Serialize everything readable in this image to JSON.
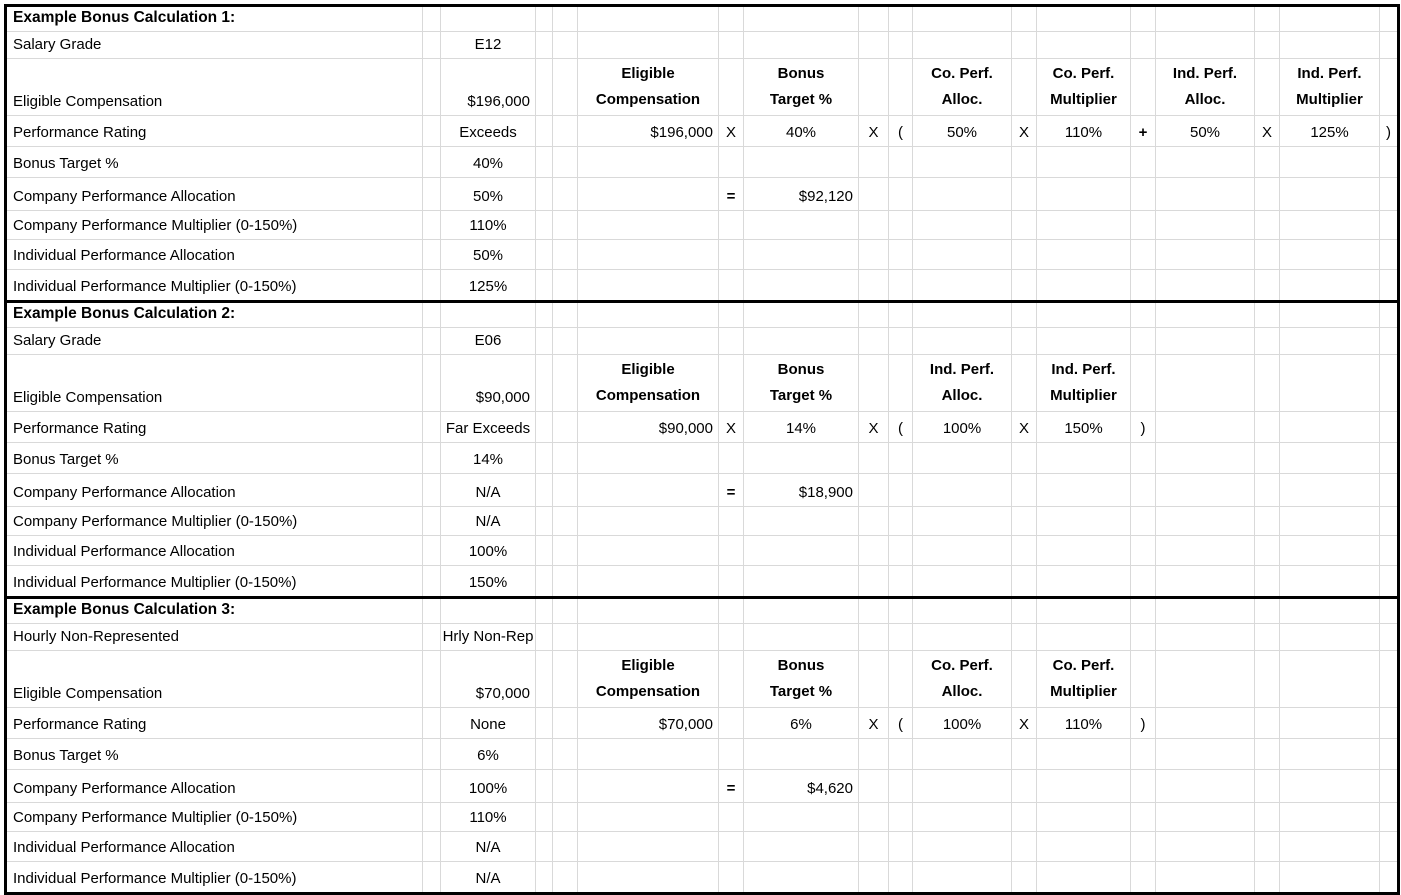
{
  "colors": {
    "text": "#000000",
    "grid_line": "#d9d9d9",
    "section_border": "#000000",
    "background": "#ffffff"
  },
  "sections": [
    {
      "title": "Example Bonus Calculation 1:",
      "rows": [
        {
          "label": "Salary Grade",
          "value": "E12"
        },
        {
          "label": "Eligible Compensation",
          "value": "$196,000"
        },
        {
          "label": "Performance Rating",
          "value": "Exceeds"
        },
        {
          "label": "Bonus Target %",
          "value": "40%"
        },
        {
          "label": "Company Performance Allocation",
          "value": "50%"
        },
        {
          "label": "Company Performance Multiplier (0-150%)",
          "value": "110%"
        },
        {
          "label": "Individual Performance Allocation",
          "value": "50%"
        },
        {
          "label": "Individual Performance Multiplier (0-150%)",
          "value": "125%"
        }
      ],
      "formula_headers": {
        "E": "Eligible\nCompensation",
        "G": "Bonus\nTarget %",
        "J": "Co. Perf.\nAlloc.",
        "L": "Co. Perf.\nMultiplier",
        "N": "Ind. Perf.\nAlloc.",
        "P": "Ind. Perf.\nMultiplier"
      },
      "formula_cells": {
        "E": "$196,000",
        "F": "X",
        "G": "40%",
        "H": "X",
        "I": "(",
        "J": "50%",
        "K": "X",
        "L": "110%",
        "M": "+",
        "N": "50%",
        "O": "X",
        "P": "125%",
        "Q": ")"
      },
      "equals_sign": "=",
      "result": "$92,120"
    },
    {
      "title": "Example Bonus Calculation 2:",
      "rows": [
        {
          "label": "Salary Grade",
          "value": "E06"
        },
        {
          "label": "Eligible Compensation",
          "value": "$90,000"
        },
        {
          "label": "Performance Rating",
          "value": "Far Exceeds"
        },
        {
          "label": "Bonus Target %",
          "value": "14%"
        },
        {
          "label": "Company Performance Allocation",
          "value": "N/A"
        },
        {
          "label": "Company Performance Multiplier (0-150%)",
          "value": "N/A"
        },
        {
          "label": "Individual Performance Allocation",
          "value": "100%"
        },
        {
          "label": "Individual Performance Multiplier (0-150%)",
          "value": "150%"
        }
      ],
      "formula_headers": {
        "E": "Eligible\nCompensation",
        "G": "Bonus\nTarget %",
        "J": "Ind. Perf.\nAlloc.",
        "L": "Ind. Perf.\nMultiplier"
      },
      "formula_cells": {
        "E": "$90,000",
        "F": "X",
        "G": "14%",
        "H": "X",
        "I": "(",
        "J": "100%",
        "K": "X",
        "L": "150%",
        "M": ")"
      },
      "equals_sign": "=",
      "result": "$18,900"
    },
    {
      "title": "Example Bonus Calculation 3:",
      "rows": [
        {
          "label": "Hourly Non-Represented",
          "value": "Hrly Non-Rep"
        },
        {
          "label": "Eligible Compensation",
          "value": "$70,000"
        },
        {
          "label": "Performance Rating",
          "value": "None"
        },
        {
          "label": "Bonus Target %",
          "value": "6%"
        },
        {
          "label": "Company Performance Allocation",
          "value": "100%"
        },
        {
          "label": "Company Performance Multiplier (0-150%)",
          "value": "110%"
        },
        {
          "label": "Individual Performance Allocation",
          "value": "N/A"
        },
        {
          "label": "Individual Performance Multiplier (0-150%)",
          "value": "N/A"
        }
      ],
      "formula_headers": {
        "E": "Eligible\nCompensation",
        "G": "Bonus\nTarget %",
        "J": "Co. Perf.\nAlloc.",
        "L": "Co. Perf.\nMultiplier"
      },
      "formula_cells": {
        "E": "$70,000",
        "G": "6%",
        "H": "X",
        "I": "(",
        "J": "100%",
        "K": "X",
        "L": "110%",
        "M": ")"
      },
      "equals_sign": "=",
      "result": "$4,620"
    }
  ]
}
